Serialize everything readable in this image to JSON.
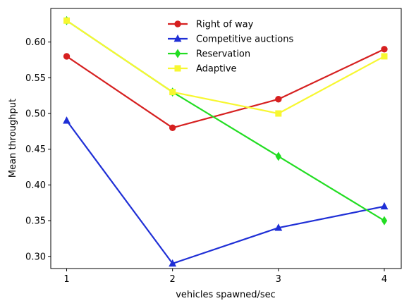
{
  "chart_data": {
    "type": "line",
    "xlabel": "vehicles spawned/sec",
    "ylabel": "Mean throughput",
    "x": [
      1,
      2,
      3,
      4
    ],
    "xticks": [
      "1",
      "2",
      "3",
      "4"
    ],
    "xlim": [
      0.85,
      4.16
    ],
    "yticks": [
      "0.30",
      "0.35",
      "0.40",
      "0.45",
      "0.50",
      "0.55",
      "0.60"
    ],
    "ylim": [
      0.283,
      0.647
    ],
    "grid": false,
    "legend_position": "upper-center",
    "series": [
      {
        "name": "Right of way",
        "values": [
          0.58,
          0.48,
          0.52,
          0.59
        ],
        "color": "#d62020",
        "marker": "circle"
      },
      {
        "name": "Competitive auctions",
        "values": [
          0.49,
          0.29,
          0.34,
          0.37
        ],
        "color": "#1f2fd6",
        "marker": "triangle"
      },
      {
        "name": "Reservation",
        "values": [
          0.63,
          0.53,
          0.44,
          0.35
        ],
        "color": "#22dd22",
        "marker": "diamond"
      },
      {
        "name": "Adaptive",
        "values": [
          0.63,
          0.53,
          0.5,
          0.58
        ],
        "color": "#f7f731",
        "marker": "square"
      }
    ]
  }
}
